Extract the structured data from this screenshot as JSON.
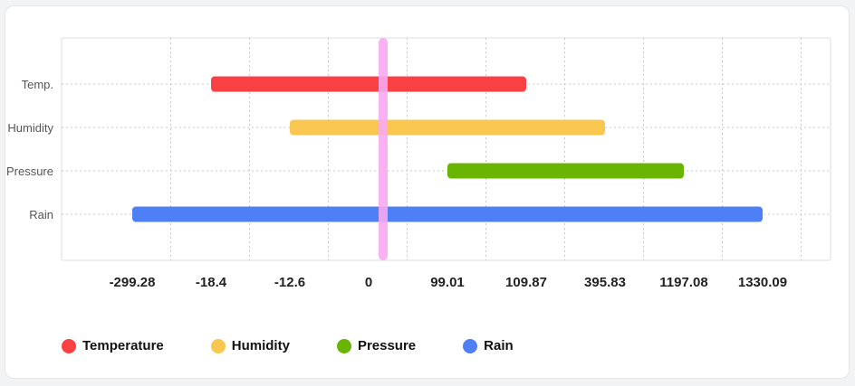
{
  "chart_data": {
    "type": "bar",
    "orientation": "horizontal-range",
    "x_axis_type": "category",
    "ticks": [
      "-299.28",
      "-18.4",
      "-12.6",
      "0",
      "99.01",
      "109.87",
      "395.83",
      "1197.08",
      "1330.09"
    ],
    "categories": [
      "Temp.",
      "Humidity",
      "Pressure",
      "Rain"
    ],
    "series": [
      {
        "name": "Temperature",
        "start": "-18.4",
        "end": "109.87",
        "color": "#f94144"
      },
      {
        "name": "Humidity",
        "start": "-12.6",
        "end": "395.83",
        "color": "#f9c74f"
      },
      {
        "name": "Pressure",
        "start": "99.01",
        "end": "1197.08",
        "color": "#6ab504"
      },
      {
        "name": "Rain",
        "start": "-299.28",
        "end": "1330.09",
        "color": "#4f7ff5"
      }
    ],
    "marker": {
      "value": "0",
      "color": "#f7a8ef"
    },
    "grid": true,
    "legend_position": "bottom-left"
  }
}
